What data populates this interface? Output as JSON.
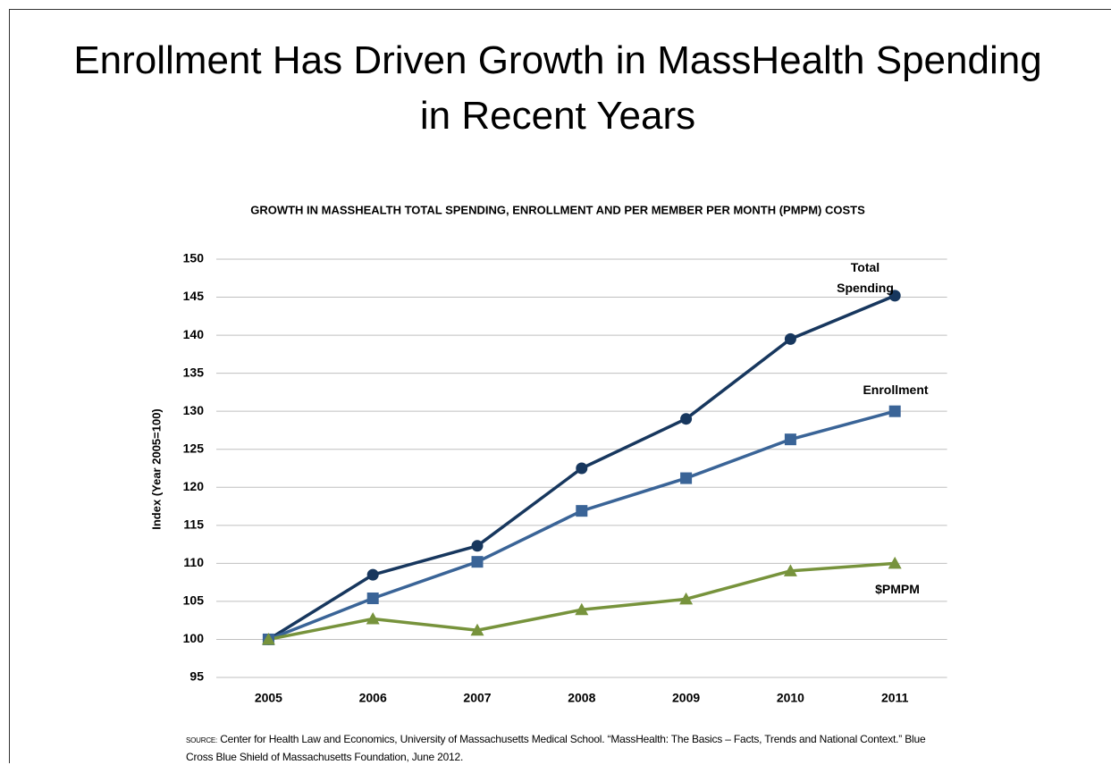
{
  "title": "Enrollment Has Driven Growth in MassHealth Spending in Recent Years",
  "chart_data": {
    "type": "line",
    "title": "GROWTH IN MASSHEALTH TOTAL SPENDING, ENROLLMENT AND PER MEMBER PER MONTH (PMPM) COSTS",
    "y_label": "Index (Year 2005=100)",
    "categories": [
      "2005",
      "2006",
      "2007",
      "2008",
      "2009",
      "2010",
      "2011"
    ],
    "series": [
      {
        "name": "Total Spending",
        "color": "#17375e",
        "marker": "circle",
        "values": [
          100,
          108.5,
          112.3,
          122.5,
          129,
          139.5,
          145.2
        ]
      },
      {
        "name": "Enrollment",
        "color": "#3a6497",
        "marker": "square",
        "values": [
          100,
          105.4,
          110.2,
          116.9,
          121.2,
          126.3,
          130
        ]
      },
      {
        "name": "$PMPM",
        "color": "#77933c",
        "marker": "triangle",
        "values": [
          100,
          102.7,
          101.2,
          103.9,
          105.3,
          109,
          110
        ]
      }
    ],
    "ylim": [
      95,
      150
    ],
    "yticks": [
      95,
      100,
      105,
      110,
      115,
      120,
      125,
      130,
      135,
      140,
      145,
      150
    ],
    "grid": true
  },
  "source": {
    "label": "SOURCE:",
    "text": "Center for Health Law and Economics, University of Massachusetts Medical School. “MassHealth: The Basics – Facts, Trends and National Context.” Blue Cross Blue Shield of Massachusetts Foundation, June 2012."
  }
}
